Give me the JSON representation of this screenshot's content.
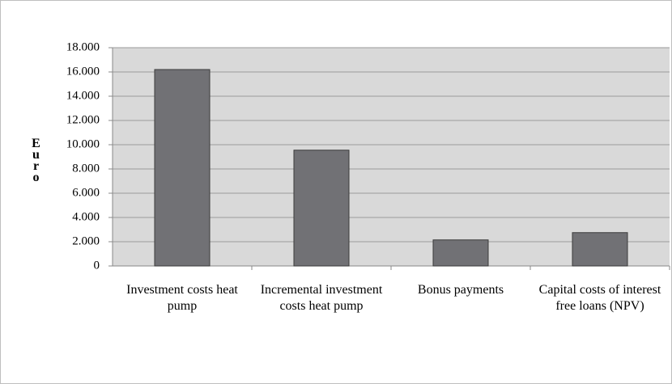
{
  "chart_data": {
    "type": "bar",
    "y_label": "Euro",
    "categories": [
      "Investment costs heat pump",
      "Incremental investment costs heat pump",
      "Bonus payments",
      "Capital costs of interest free loans (NPV)"
    ],
    "values": [
      16200,
      9550,
      2150,
      2750
    ],
    "color": "#717175",
    "ylim": [
      0,
      18000
    ],
    "yticks": [
      0,
      {
        "value": 2000,
        "label": "2.000"
      },
      {
        "value": 4000,
        "label": "4.000"
      },
      {
        "value": 6000,
        "label": "6.000"
      },
      {
        "value": 8000,
        "label": "8.000"
      },
      {
        "value": 10000,
        "label": "10.000"
      },
      {
        "value": 12000,
        "label": "12.000"
      },
      {
        "value": 14000,
        "label": "14.000"
      },
      {
        "value": 16000,
        "label": "16.000"
      },
      {
        "value": 18000,
        "label": "18.000"
      }
    ],
    "grid": true
  }
}
